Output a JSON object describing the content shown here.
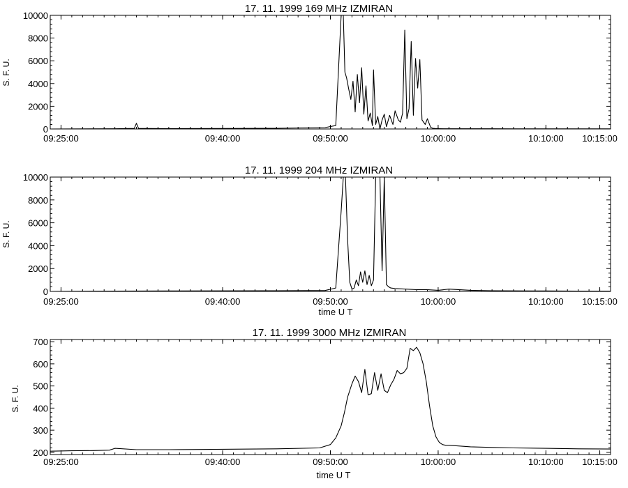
{
  "chart_data": [
    {
      "type": "line",
      "title": "17.  11.  1999    169  MHz     IZMIRAN",
      "ylabel": "S. F. U.",
      "xlabel": "",
      "ylim": [
        0,
        10000
      ],
      "yticks": [
        0,
        2000,
        4000,
        6000,
        8000,
        10000
      ],
      "xlim_minutes": [
        -1,
        51
      ],
      "xticks": [
        {
          "label": "09:25:00",
          "min": 0
        },
        {
          "label": "09:40:00",
          "min": 15
        },
        {
          "label": "09:50:00",
          "min": 25
        },
        {
          "label": "10:00:00",
          "min": 35
        },
        {
          "label": "10:10:00",
          "min": 45
        },
        {
          "label": "10:15:00",
          "min": 50
        }
      ],
      "series": [
        {
          "x": [
            -1,
            5,
            6.8,
            7,
            7.2,
            10,
            15,
            20,
            24.5,
            25.5,
            26.0,
            26.2,
            26.35,
            26.5,
            26.7,
            26.9,
            27.1,
            27.3,
            27.5,
            27.7,
            27.9,
            28.1,
            28.3,
            28.5,
            28.7,
            28.9,
            29.0,
            29.2,
            29.4,
            29.6,
            29.8,
            30.0,
            30.2,
            30.5,
            30.8,
            31.0,
            31.3,
            31.5,
            31.7,
            31.9,
            32.1,
            32.3,
            32.5,
            32.7,
            32.9,
            33.1,
            33.3,
            33.5,
            33.8,
            34.0,
            34.3,
            34.5,
            34.7,
            35.0,
            35.5,
            36,
            38,
            40,
            42,
            45,
            48,
            51
          ],
          "y": [
            0,
            20,
            50,
            500,
            50,
            30,
            40,
            60,
            120,
            300,
            10000,
            10000,
            5000,
            4500,
            3500,
            2600,
            4200,
            1500,
            4800,
            2300,
            5400,
            1300,
            3800,
            700,
            1400,
            300,
            5200,
            400,
            1100,
            0,
            800,
            1300,
            200,
            1200,
            400,
            1600,
            800,
            600,
            1400,
            8700,
            900,
            1800,
            7700,
            1200,
            6200,
            3600,
            6100,
            800,
            400,
            900,
            150,
            60,
            40,
            30,
            20,
            20,
            20,
            20,
            15,
            15,
            10,
            10
          ]
        }
      ]
    },
    {
      "type": "line",
      "title": "17.  11.  1999    204  MHz     IZMIRAN",
      "ylabel": "S. F. U.",
      "xlabel": "time   U T",
      "ylim": [
        0,
        10000
      ],
      "yticks": [
        0,
        2000,
        4000,
        6000,
        8000,
        10000
      ],
      "xlim_minutes": [
        -1,
        51
      ],
      "xticks": [
        {
          "label": "09:25:00",
          "min": 0
        },
        {
          "label": "09:40:00",
          "min": 15
        },
        {
          "label": "09:50:00",
          "min": 25
        },
        {
          "label": "10:00:00",
          "min": 35
        },
        {
          "label": "10:10:00",
          "min": 45
        },
        {
          "label": "10:15:00",
          "min": 50
        }
      ],
      "series": [
        {
          "x": [
            -1,
            5,
            10,
            15,
            20,
            24.5,
            25.5,
            26.0,
            26.2,
            26.4,
            26.6,
            26.8,
            27.0,
            27.2,
            27.4,
            27.6,
            27.8,
            28.0,
            28.2,
            28.4,
            28.6,
            28.8,
            29.0,
            29.2,
            29.4,
            29.6,
            29.8,
            30.0,
            30.2,
            30.4,
            30.6,
            31,
            32,
            33,
            34,
            35,
            36,
            38,
            40,
            42,
            45,
            48,
            51
          ],
          "y": [
            0,
            30,
            40,
            50,
            60,
            80,
            300,
            7000,
            10000,
            10000,
            4500,
            800,
            200,
            300,
            1000,
            500,
            1700,
            800,
            1800,
            600,
            1400,
            500,
            1000,
            10000,
            10000,
            10000,
            1800,
            10000,
            600,
            400,
            300,
            250,
            200,
            150,
            150,
            100,
            200,
            100,
            60,
            50,
            40,
            30,
            30
          ]
        }
      ]
    },
    {
      "type": "line",
      "title": "17.  11.  1999    3000  MHz     IZMIRAN",
      "ylabel": "S. F. U.",
      "xlabel": "time   U T",
      "ylim": [
        190,
        710
      ],
      "yticks": [
        200,
        300,
        400,
        500,
        600,
        700
      ],
      "xlim_minutes": [
        -1,
        51
      ],
      "xticks": [
        {
          "label": "09:25:00",
          "min": 0
        },
        {
          "label": "09:40:00",
          "min": 15
        },
        {
          "label": "09:50:00",
          "min": 25
        },
        {
          "label": "10:00:00",
          "min": 35
        },
        {
          "label": "10:10:00",
          "min": 45
        },
        {
          "label": "10:15:00",
          "min": 50
        }
      ],
      "series": [
        {
          "x": [
            -1,
            1,
            3,
            4.5,
            5,
            7,
            10,
            15,
            20,
            24,
            25,
            25.5,
            26.0,
            26.3,
            26.6,
            27.0,
            27.3,
            27.6,
            27.9,
            28.2,
            28.5,
            28.8,
            29.1,
            29.4,
            29.7,
            30.0,
            30.3,
            30.6,
            30.9,
            31.2,
            31.5,
            31.8,
            32.1,
            32.4,
            32.7,
            33.0,
            33.3,
            33.6,
            33.9,
            34.2,
            34.5,
            34.8,
            35.1,
            35.4,
            35.7,
            36,
            38,
            40,
            42,
            45,
            48,
            51
          ],
          "y": [
            205,
            207,
            208,
            210,
            218,
            212,
            212,
            214,
            216,
            220,
            235,
            265,
            320,
            380,
            450,
            510,
            545,
            520,
            470,
            575,
            460,
            465,
            560,
            480,
            555,
            480,
            470,
            505,
            530,
            570,
            555,
            560,
            580,
            670,
            660,
            675,
            650,
            600,
            520,
            410,
            320,
            270,
            245,
            235,
            232,
            232,
            225,
            222,
            220,
            218,
            216,
            215
          ]
        }
      ]
    }
  ]
}
